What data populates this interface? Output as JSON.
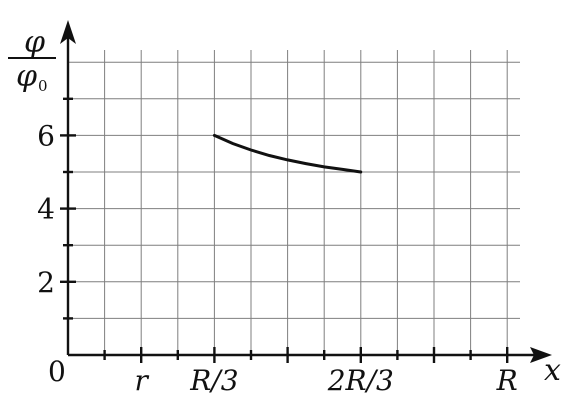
{
  "chart_data": {
    "type": "line",
    "ylabel_num": "φ",
    "ylabel_den": "φ",
    "ylabel_den_sub": "0",
    "xlabel": "x",
    "origin_label": "0",
    "xticks": [
      {
        "label": "r",
        "x": 1
      },
      {
        "label": "R/3",
        "x": 2
      },
      {
        "label": "2R/3",
        "x": 4
      },
      {
        "label": "R",
        "x": 6
      }
    ],
    "yticks": [
      {
        "label": "2",
        "y": 2
      },
      {
        "label": "4",
        "y": 4
      },
      {
        "label": "6",
        "y": 6
      }
    ],
    "xlim": [
      0,
      6
    ],
    "ylim": [
      0,
      8
    ],
    "grid": true,
    "series": [
      {
        "x": [
          2.0,
          2.25,
          2.5,
          2.75,
          3.0,
          3.25,
          3.5,
          3.75,
          4.0
        ],
        "y": [
          6.0,
          5.78,
          5.6,
          5.45,
          5.33,
          5.23,
          5.14,
          5.07,
          5.0
        ],
        "color": "#111111"
      }
    ]
  }
}
